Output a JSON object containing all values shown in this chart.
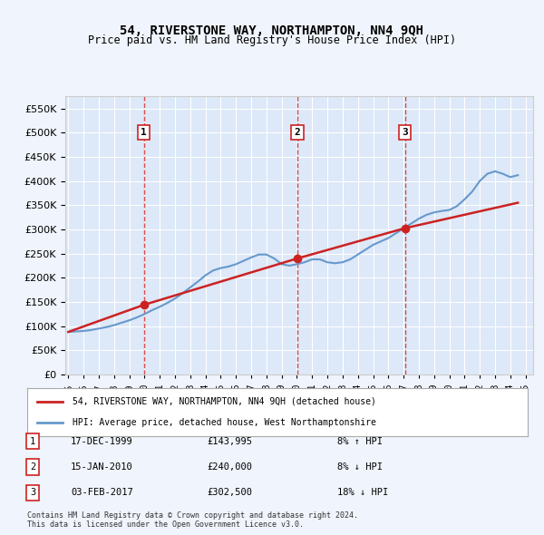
{
  "title": "54, RIVERSTONE WAY, NORTHAMPTON, NN4 9QH",
  "subtitle": "Price paid vs. HM Land Registry's House Price Index (HPI)",
  "background_color": "#eef3fb",
  "plot_bg_color": "#dde8f8",
  "legend_label_red": "54, RIVERSTONE WAY, NORTHAMPTON, NN4 9QH (detached house)",
  "legend_label_blue": "HPI: Average price, detached house, West Northamptonshire",
  "footnote": "Contains HM Land Registry data © Crown copyright and database right 2024.\nThis data is licensed under the Open Government Licence v3.0.",
  "transactions": [
    {
      "num": 1,
      "date": "17-DEC-1999",
      "price": 143995,
      "pct": "8%",
      "dir": "↑",
      "x_year": 1999.96
    },
    {
      "num": 2,
      "date": "15-JAN-2010",
      "price": 240000,
      "pct": "8%",
      "dir": "↓",
      "x_year": 2010.04
    },
    {
      "num": 3,
      "date": "03-FEB-2017",
      "price": 302500,
      "pct": "18%",
      "dir": "↓",
      "x_year": 2017.09
    }
  ],
  "hpi_x": [
    1995,
    1995.5,
    1996,
    1996.5,
    1997,
    1997.5,
    1998,
    1998.5,
    1999,
    1999.5,
    2000,
    2000.5,
    2001,
    2001.5,
    2002,
    2002.5,
    2003,
    2003.5,
    2004,
    2004.5,
    2005,
    2005.5,
    2006,
    2006.5,
    2007,
    2007.5,
    2008,
    2008.5,
    2009,
    2009.5,
    2010,
    2010.5,
    2011,
    2011.5,
    2012,
    2012.5,
    2013,
    2013.5,
    2014,
    2014.5,
    2015,
    2015.5,
    2016,
    2016.5,
    2017,
    2017.5,
    2018,
    2018.5,
    2019,
    2019.5,
    2020,
    2020.5,
    2021,
    2021.5,
    2022,
    2022.5,
    2023,
    2023.5,
    2024,
    2024.5
  ],
  "hpi_y": [
    88000,
    89000,
    90000,
    92000,
    95000,
    98000,
    102000,
    107000,
    112000,
    118000,
    125000,
    133000,
    140000,
    148000,
    157000,
    168000,
    180000,
    192000,
    205000,
    215000,
    220000,
    223000,
    228000,
    235000,
    242000,
    248000,
    248000,
    240000,
    228000,
    225000,
    228000,
    232000,
    238000,
    238000,
    232000,
    230000,
    232000,
    238000,
    248000,
    258000,
    268000,
    275000,
    282000,
    292000,
    302000,
    312000,
    322000,
    330000,
    335000,
    338000,
    340000,
    348000,
    362000,
    378000,
    400000,
    415000,
    420000,
    415000,
    408000,
    412000
  ],
  "price_x": [
    1995.0,
    1999.96,
    2010.04,
    2017.09,
    2024.5
  ],
  "price_y": [
    88000,
    143995,
    240000,
    302500,
    355000
  ],
  "ylim": [
    0,
    575000
  ],
  "xlim_min": 1994.8,
  "xlim_max": 2025.5,
  "yticks": [
    0,
    50000,
    100000,
    150000,
    200000,
    250000,
    300000,
    350000,
    400000,
    450000,
    500000,
    550000
  ]
}
